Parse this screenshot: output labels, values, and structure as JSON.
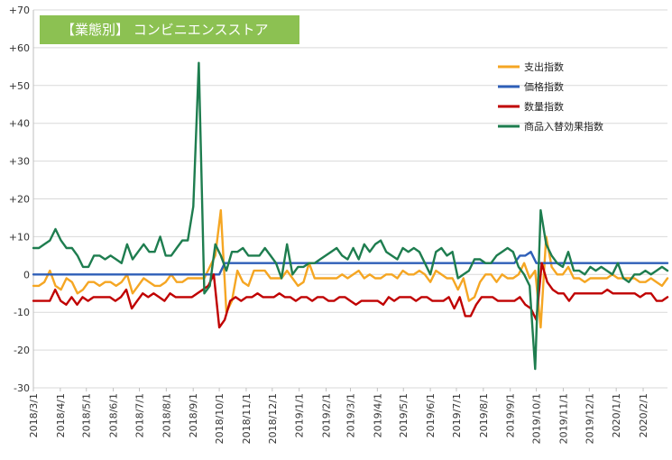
{
  "chart_data": {
    "type": "line",
    "title": "【業態別】 コンビニエンスストア",
    "colors": {
      "title_bg": "#8cc152",
      "axis": "#bfbfbf",
      "grid": "#d9d9d9"
    },
    "ylim": [
      -30,
      70
    ],
    "yticks": [
      {
        "value": 70,
        "label": "+70"
      },
      {
        "value": 60,
        "label": "+60"
      },
      {
        "value": 50,
        "label": "+50"
      },
      {
        "value": 40,
        "label": "+40"
      },
      {
        "value": 30,
        "label": "+30"
      },
      {
        "value": 20,
        "label": "+20"
      },
      {
        "value": 10,
        "label": "+10"
      },
      {
        "value": 0,
        "label": "0"
      },
      {
        "value": -10,
        "label": "-10"
      },
      {
        "value": -20,
        "label": "-20"
      },
      {
        "value": -30,
        "label": "-30"
      }
    ],
    "xlabels": [
      "2018/3/1",
      "2018/4/1",
      "2018/5/1",
      "2018/6/1",
      "2018/7/1",
      "2018/8/1",
      "2018/9/1",
      "2018/10/1",
      "2018/11/1",
      "2018/12/1",
      "2019/1/1",
      "2019/2/1",
      "2019/3/1",
      "2019/4/1",
      "2019/5/1",
      "2019/6/1",
      "2019/7/1",
      "2019/8/1",
      "2019/9/1",
      "2019/10/1",
      "2019/11/1",
      "2019/12/1",
      "2020/1/1",
      "2020/2/1"
    ],
    "x_start": "2018/3/1",
    "x_end": "2020/2/29",
    "grid": "horizontal",
    "legend_position": "top-right",
    "series": [
      {
        "name": "支出指数",
        "color": "#f5a623",
        "values": [
          -3,
          -3,
          -2,
          1,
          -3,
          -4,
          -1,
          -2,
          -5,
          -4,
          -2,
          -2,
          -3,
          -2,
          -2,
          -3,
          -2,
          0,
          -5,
          -3,
          -1,
          -2,
          -3,
          -3,
          -2,
          0,
          -2,
          -2,
          -1,
          -1,
          -1,
          -1,
          2,
          5,
          17,
          -10,
          -7,
          1,
          -2,
          -3,
          1,
          1,
          1,
          -1,
          -1,
          -1,
          1,
          -1,
          -3,
          -2,
          3,
          -1,
          -1,
          -1,
          -1,
          -1,
          0,
          -1,
          0,
          1,
          -1,
          0,
          -1,
          -1,
          0,
          0,
          -1,
          1,
          0,
          0,
          1,
          0,
          -2,
          1,
          0,
          -1,
          -1,
          -4,
          -1,
          -7,
          -6,
          -2,
          0,
          0,
          -2,
          0,
          -1,
          -1,
          0,
          3,
          -1,
          1,
          -14,
          10,
          2,
          0,
          0,
          2,
          -1,
          -1,
          -2,
          -1,
          -1,
          -1,
          -1,
          0,
          -1,
          -1,
          -1,
          -1,
          -2,
          -2,
          -1,
          -2,
          -3,
          -1
        ]
      },
      {
        "name": "価格指数",
        "color": "#2e5fb8",
        "values": [
          0,
          0,
          0,
          0,
          0,
          0,
          0,
          0,
          0,
          0,
          0,
          0,
          0,
          0,
          0,
          0,
          0,
          0,
          0,
          0,
          0,
          0,
          0,
          0,
          0,
          0,
          0,
          0,
          0,
          0,
          0,
          0,
          0,
          0,
          0,
          3,
          3,
          3,
          3,
          3,
          3,
          3,
          3,
          3,
          3,
          3,
          3,
          3,
          3,
          3,
          3,
          3,
          3,
          3,
          3,
          3,
          3,
          3,
          3,
          3,
          3,
          3,
          3,
          3,
          3,
          3,
          3,
          3,
          3,
          3,
          3,
          3,
          3,
          3,
          3,
          3,
          3,
          3,
          3,
          3,
          3,
          3,
          3,
          3,
          3,
          3,
          3,
          3,
          3,
          5,
          5,
          6,
          3,
          3,
          3,
          3,
          3,
          3,
          3,
          3,
          3,
          3,
          3,
          3,
          3,
          3,
          3,
          3,
          3,
          3,
          3,
          3,
          3,
          3,
          3,
          3,
          3
        ]
      },
      {
        "name": "数量指数",
        "color": "#c00000",
        "values": [
          -7,
          -7,
          -7,
          -7,
          -4,
          -7,
          -8,
          -6,
          -8,
          -6,
          -7,
          -6,
          -6,
          -6,
          -6,
          -7,
          -6,
          -4,
          -9,
          -7,
          -5,
          -6,
          -5,
          -6,
          -7,
          -5,
          -6,
          -6,
          -6,
          -6,
          -5,
          -4,
          -3,
          0,
          -14,
          -12,
          -7,
          -6,
          -7,
          -6,
          -6,
          -5,
          -6,
          -6,
          -6,
          -5,
          -6,
          -6,
          -7,
          -6,
          -6,
          -7,
          -6,
          -6,
          -7,
          -7,
          -6,
          -6,
          -7,
          -8,
          -7,
          -7,
          -7,
          -7,
          -8,
          -6,
          -7,
          -6,
          -6,
          -6,
          -7,
          -6,
          -6,
          -7,
          -7,
          -7,
          -6,
          -9,
          -6,
          -11,
          -11,
          -8,
          -6,
          -6,
          -6,
          -7,
          -7,
          -7,
          -7,
          -6,
          -8,
          -9,
          -12,
          3,
          -2,
          -4,
          -5,
          -5,
          -7,
          -5,
          -5,
          -5,
          -5,
          -5,
          -5,
          -4,
          -5,
          -5,
          -5,
          -5,
          -5,
          -6,
          -5,
          -5,
          -7,
          -7,
          -6
        ]
      },
      {
        "name": "商品入替効果指数",
        "color": "#1e7d4f",
        "values": [
          7,
          7,
          8,
          9,
          12,
          9,
          7,
          7,
          5,
          2,
          2,
          5,
          5,
          4,
          5,
          4,
          3,
          8,
          4,
          6,
          8,
          6,
          6,
          10,
          5,
          5,
          7,
          9,
          9,
          18,
          56,
          -5,
          -3,
          8,
          5,
          1,
          6,
          6,
          7,
          5,
          5,
          5,
          7,
          5,
          3,
          -1,
          8,
          0,
          2,
          2,
          3,
          3,
          4,
          5,
          6,
          7,
          5,
          4,
          7,
          4,
          8,
          6,
          8,
          9,
          6,
          5,
          4,
          7,
          6,
          7,
          6,
          3,
          0,
          6,
          7,
          5,
          6,
          -1,
          0,
          1,
          4,
          4,
          3,
          3,
          5,
          6,
          7,
          6,
          2,
          0,
          -3,
          -25,
          17,
          8,
          5,
          3,
          2,
          6,
          1,
          1,
          0,
          2,
          1,
          2,
          1,
          0,
          3,
          -1,
          -2,
          0,
          0,
          1,
          0,
          1,
          2,
          1
        ]
      }
    ]
  }
}
